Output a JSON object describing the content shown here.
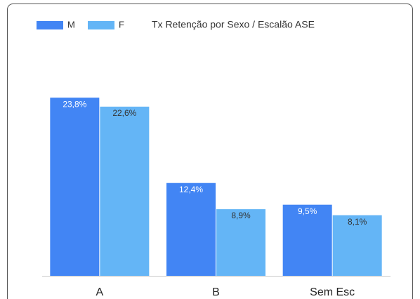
{
  "chart_data": {
    "type": "bar",
    "title": "Tx Retenção por Sexo / Escalão ASE",
    "categories": [
      "A",
      "B",
      "Sem Esc"
    ],
    "series": [
      {
        "name": "M",
        "color": "#4285f4",
        "label_color": "#ffffff",
        "values": [
          23.8,
          12.4,
          9.5
        ],
        "value_labels": [
          "23,8%",
          "12,4%",
          "9,5%"
        ]
      },
      {
        "name": "F",
        "color": "#64b5f6",
        "label_color": "#333333",
        "values": [
          22.6,
          8.9,
          8.1
        ],
        "value_labels": [
          "22,6%",
          "8,9%",
          "8,1%"
        ]
      }
    ],
    "ylim": [
      0,
      30
    ]
  }
}
